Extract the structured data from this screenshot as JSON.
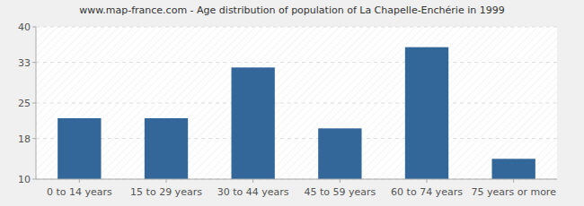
{
  "chart_data": {
    "type": "bar",
    "title": "www.map-france.com - Age distribution of population of La Chapelle-Enchérie in 1999",
    "categories": [
      "0 to 14 years",
      "15 to 29 years",
      "30 to 44 years",
      "45 to 59 years",
      "60 to 74 years",
      "75 years or more"
    ],
    "values": [
      22,
      22,
      32,
      20,
      36,
      14
    ],
    "color": "#336699",
    "ylim": [
      10,
      40
    ],
    "yticks": [
      10,
      18,
      25,
      33,
      40
    ],
    "grid": true
  }
}
